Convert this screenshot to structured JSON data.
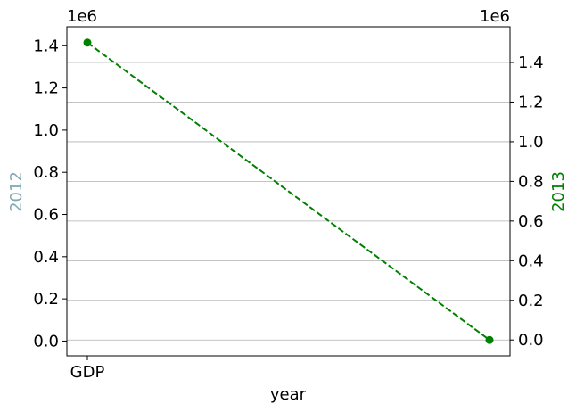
{
  "chart_data": {
    "type": "line",
    "xlabel": "year",
    "x_tick_labels": [
      "GDP"
    ],
    "left_axis": {
      "label": "2012",
      "label_color": "#7fa9b4",
      "offset_text": "1e6",
      "ylim": [
        -70000,
        1490000
      ],
      "ticks": [
        "0.0",
        "0.2",
        "0.4",
        "0.6",
        "0.8",
        "1.0",
        "1.2",
        "1.4"
      ],
      "tick_values": [
        0,
        200000,
        400000,
        600000,
        800000,
        1000000,
        1200000,
        1400000
      ]
    },
    "right_axis": {
      "label": "2013",
      "label_color": "#008000",
      "offset_text": "1e6",
      "ylim": [
        -80000,
        1580000
      ],
      "ticks": [
        "0.0",
        "0.2",
        "0.4",
        "0.6",
        "0.8",
        "1.0",
        "1.2",
        "1.4"
      ],
      "tick_values": [
        0,
        200000,
        400000,
        600000,
        800000,
        1000000,
        1200000,
        1400000
      ]
    },
    "grid": "horizontal, right axis",
    "series": [
      {
        "axis": "right",
        "color": "#008000",
        "line_style": "dashed",
        "marker": "circle",
        "x": [
          0,
          1
        ],
        "y": [
          1500000,
          0
        ]
      }
    ]
  }
}
